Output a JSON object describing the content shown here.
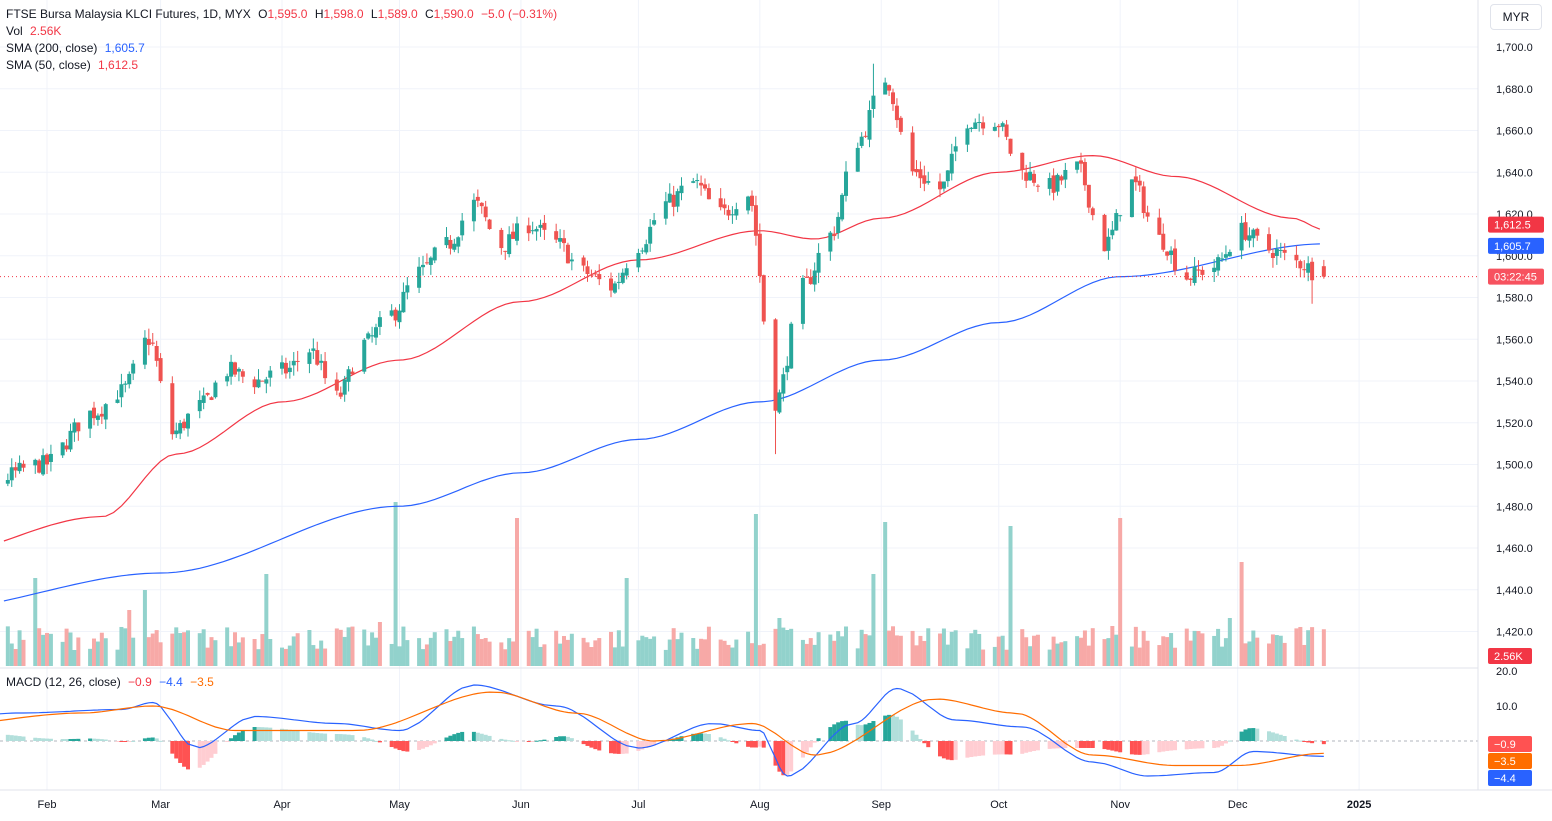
{
  "header": {
    "symbol": "FTSE Bursa Malaysia KLCI Futures, 1D, MYX",
    "o_label": "O",
    "o_value": "1,595.0",
    "h_label": "H",
    "h_value": "1,598.0",
    "l_label": "L",
    "l_value": "1,589.0",
    "c_label": "C",
    "c_value": "1,590.0",
    "change": "−5.0 (−0.31%)"
  },
  "vol_legend": {
    "label": "Vol",
    "value": "2.56K"
  },
  "sma200_legend": {
    "label": "SMA (200, close)",
    "value": "1,605.7"
  },
  "sma50_legend": {
    "label": "SMA (50, close)",
    "value": "1,612.5"
  },
  "macd_legend": {
    "label": "MACD (12, 26, close)",
    "hist": "−0.9",
    "macd": "−4.4",
    "signal": "−3.5"
  },
  "currency_button": "MYR",
  "colors": {
    "up": "#26a69a",
    "down": "#ef5350",
    "sma200": "#2962ff",
    "sma50": "#f23645",
    "macd_line": "#2962ff",
    "signal_line": "#ff6d00",
    "price_line": "#f23645"
  },
  "chart_data": {
    "type": "candlestick",
    "price_axis": {
      "ticks": [
        "1,700.0",
        "1,680.0",
        "1,660.0",
        "1,640.0",
        "1,620.0",
        "1,600.0",
        "1,580.0",
        "1,560.0",
        "1,540.0",
        "1,520.0",
        "1,500.0",
        "1,480.0",
        "1,460.0",
        "1,440.0",
        "1,420.0"
      ],
      "range": [
        1410,
        1710
      ]
    },
    "time_axis": {
      "ticks": [
        "Feb",
        "Mar",
        "Apr",
        "May",
        "Jun",
        "Jul",
        "Aug",
        "Sep",
        "Oct",
        "Nov",
        "Dec",
        "2025"
      ]
    },
    "labels": {
      "sma50": "1,612.5",
      "sma200": "1,605.7",
      "countdown": "03:22:45",
      "volume": "2.56K"
    },
    "last_price": 1590.0,
    "price_anchors": [
      [
        "2024-01-15",
        1490
      ],
      [
        "2024-01-31",
        1500
      ],
      [
        "2024-02-13",
        1525
      ],
      [
        "2024-02-20",
        1535
      ],
      [
        "2024-02-27",
        1560
      ],
      [
        "2024-03-04",
        1515
      ],
      [
        "2024-03-11",
        1528
      ],
      [
        "2024-03-18",
        1545
      ],
      [
        "2024-03-25",
        1540
      ],
      [
        "2024-04-02",
        1545
      ],
      [
        "2024-04-08",
        1555
      ],
      [
        "2024-04-15",
        1532
      ],
      [
        "2024-04-22",
        1558
      ],
      [
        "2024-04-29",
        1572
      ],
      [
        "2024-05-06",
        1592
      ],
      [
        "2024-05-13",
        1605
      ],
      [
        "2024-05-20",
        1625
      ],
      [
        "2024-05-27",
        1605
      ],
      [
        "2024-06-03",
        1615
      ],
      [
        "2024-06-10",
        1606
      ],
      [
        "2024-06-17",
        1592
      ],
      [
        "2024-06-24",
        1585
      ],
      [
        "2024-07-01",
        1605
      ],
      [
        "2024-07-08",
        1625
      ],
      [
        "2024-07-15",
        1635
      ],
      [
        "2024-07-22",
        1620
      ],
      [
        "2024-07-29",
        1630
      ],
      [
        "2024-08-05",
        1530
      ],
      [
        "2024-08-12",
        1585
      ],
      [
        "2024-08-19",
        1610
      ],
      [
        "2024-08-26",
        1655
      ],
      [
        "2024-09-02",
        1685
      ],
      [
        "2024-09-09",
        1640
      ],
      [
        "2024-09-16",
        1632
      ],
      [
        "2024-09-23",
        1665
      ],
      [
        "2024-09-30",
        1665
      ],
      [
        "2024-10-07",
        1640
      ],
      [
        "2024-10-14",
        1633
      ],
      [
        "2024-10-21",
        1642
      ],
      [
        "2024-10-28",
        1605
      ],
      [
        "2024-11-04",
        1635
      ],
      [
        "2024-11-11",
        1608
      ],
      [
        "2024-11-18",
        1590
      ],
      [
        "2024-11-25",
        1595
      ],
      [
        "2024-12-02",
        1612
      ],
      [
        "2024-12-09",
        1603
      ],
      [
        "2024-12-16",
        1597
      ],
      [
        "2024-12-23",
        1590
      ]
    ],
    "sma50_anchors": [
      [
        "2024-01-01",
        1455
      ],
      [
        "2024-02-15",
        1475
      ],
      [
        "2024-03-05",
        1505
      ],
      [
        "2024-04-01",
        1530
      ],
      [
        "2024-05-01",
        1550
      ],
      [
        "2024-06-01",
        1578
      ],
      [
        "2024-07-01",
        1598
      ],
      [
        "2024-08-01",
        1612
      ],
      [
        "2024-08-15",
        1608
      ],
      [
        "2024-09-01",
        1618
      ],
      [
        "2024-10-01",
        1640
      ],
      [
        "2024-10-25",
        1648
      ],
      [
        "2024-11-15",
        1638
      ],
      [
        "2024-12-15",
        1618
      ],
      [
        "2024-12-23",
        1612.5
      ]
    ],
    "sma200_anchors": [
      [
        "2024-01-01",
        1430
      ],
      [
        "2024-03-01",
        1448
      ],
      [
        "2024-05-01",
        1480
      ],
      [
        "2024-06-01",
        1496
      ],
      [
        "2024-07-01",
        1512
      ],
      [
        "2024-08-01",
        1530
      ],
      [
        "2024-09-01",
        1550
      ],
      [
        "2024-10-01",
        1568
      ],
      [
        "2024-11-01",
        1590
      ],
      [
        "2024-12-23",
        1605.7
      ]
    ],
    "macd_axis": {
      "ticks": [
        "20.0",
        "10.0"
      ]
    },
    "macd_values": {
      "histogram": -0.9,
      "signal": -3.5,
      "macd": -4.4
    },
    "macd_anchors": [
      [
        "2024-01-01",
        6
      ],
      [
        "2024-01-25",
        8
      ],
      [
        "2024-02-20",
        9
      ],
      [
        "2024-02-28",
        11
      ],
      [
        "2024-03-10",
        -2
      ],
      [
        "2024-03-25",
        7
      ],
      [
        "2024-04-15",
        5
      ],
      [
        "2024-05-01",
        3
      ],
      [
        "2024-05-20",
        16
      ],
      [
        "2024-06-10",
        10
      ],
      [
        "2024-07-01",
        -2
      ],
      [
        "2024-07-20",
        5
      ],
      [
        "2024-08-01",
        3
      ],
      [
        "2024-08-08",
        -10
      ],
      [
        "2024-08-25",
        5
      ],
      [
        "2024-09-05",
        15
      ],
      [
        "2024-09-20",
        6
      ],
      [
        "2024-10-07",
        4
      ],
      [
        "2024-10-25",
        -6
      ],
      [
        "2024-11-08",
        -10
      ],
      [
        "2024-11-25",
        -9
      ],
      [
        "2024-12-05",
        -3
      ],
      [
        "2024-12-23",
        -4.4
      ]
    ],
    "signal_anchors": [
      [
        "2024-01-01",
        4
      ],
      [
        "2024-02-10",
        8
      ],
      [
        "2024-02-28",
        10
      ],
      [
        "2024-03-20",
        3
      ],
      [
        "2024-04-20",
        3
      ],
      [
        "2024-05-25",
        14
      ],
      [
        "2024-06-15",
        8
      ],
      [
        "2024-07-05",
        0
      ],
      [
        "2024-07-30",
        5
      ],
      [
        "2024-08-15",
        -4
      ],
      [
        "2024-09-15",
        12
      ],
      [
        "2024-10-05",
        8
      ],
      [
        "2024-10-25",
        -4
      ],
      [
        "2024-11-15",
        -7
      ],
      [
        "2024-12-01",
        -7
      ],
      [
        "2024-12-23",
        -3.5
      ]
    ],
    "volume_spikes": [
      [
        "2024-01-29",
        2.2,
        "up"
      ],
      [
        "2024-02-26",
        1.9,
        "up"
      ],
      [
        "2024-02-22",
        1.4,
        "down"
      ],
      [
        "2024-03-28",
        2.3,
        "up"
      ],
      [
        "2024-04-30",
        4.1,
        "up"
      ],
      [
        "2024-04-26",
        1.1,
        "down"
      ],
      [
        "2024-05-31",
        3.7,
        "down"
      ],
      [
        "2024-06-28",
        2.2,
        "up"
      ],
      [
        "2024-07-31",
        3.8,
        "up"
      ],
      [
        "2024-08-06",
        1.2,
        "up"
      ],
      [
        "2024-09-02",
        3.6,
        "up"
      ],
      [
        "2024-08-30",
        2.3,
        "up"
      ],
      [
        "2024-10-04",
        3.5,
        "up"
      ],
      [
        "2024-11-01",
        3.7,
        "down"
      ],
      [
        "2024-10-30",
        1.0,
        "down"
      ],
      [
        "2024-12-02",
        2.6,
        "down"
      ],
      [
        "2024-11-29",
        1.2,
        "up"
      ]
    ]
  }
}
